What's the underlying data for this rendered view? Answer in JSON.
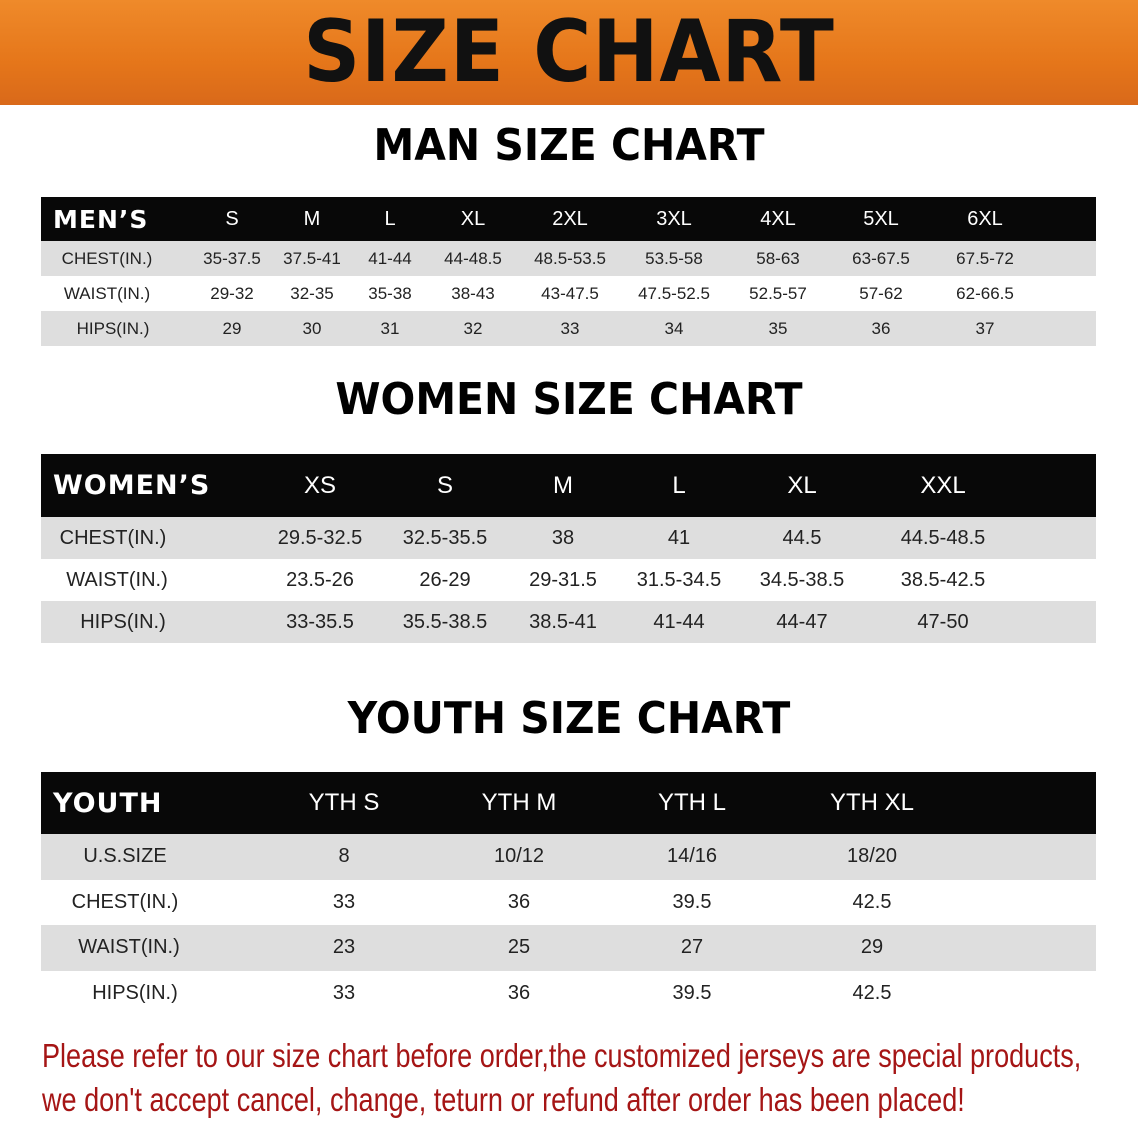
{
  "banner": {
    "title": "SIZE CHART",
    "color": "#e8781a"
  },
  "men": {
    "title": "MAN SIZE CHART",
    "header": [
      "MEN’S",
      "S",
      "M",
      "L",
      "XL",
      "2XL",
      "3XL",
      "4XL",
      "5XL",
      "6XL"
    ],
    "rows": [
      [
        "CHEST(IN.)",
        "35-37.5",
        "37.5-41",
        "41-44",
        "44-48.5",
        "48.5-53.5",
        "53.5-58",
        "58-63",
        "63-67.5",
        "67.5-72"
      ],
      [
        "WAIST(IN.)",
        "29-32",
        "32-35",
        "35-38",
        "38-43",
        "43-47.5",
        "47.5-52.5",
        "52.5-57",
        "57-62",
        "62-66.5"
      ],
      [
        "HIPS(IN.)",
        "29",
        "30",
        "31",
        "32",
        "33",
        "34",
        "35",
        "36",
        "37"
      ]
    ]
  },
  "women": {
    "title": "WOMEN SIZE CHART",
    "header": [
      "WOMEN’S",
      "XS",
      "S",
      "M",
      "L",
      "XL",
      "XXL"
    ],
    "rows": [
      [
        "CHEST(IN.)",
        "29.5-32.5",
        "32.5-35.5",
        "38",
        "41",
        "44.5",
        "44.5-48.5"
      ],
      [
        "WAIST(IN.)",
        "23.5-26",
        "26-29",
        "29-31.5",
        "31.5-34.5",
        "34.5-38.5",
        "38.5-42.5"
      ],
      [
        "HIPS(IN.)",
        "33-35.5",
        "35.5-38.5",
        "38.5-41",
        "41-44",
        "44-47",
        "47-50"
      ]
    ]
  },
  "youth": {
    "title": "YOUTH SIZE CHART",
    "header": [
      "YOUTH",
      "YTH S",
      "YTH M",
      "YTH L",
      "YTH XL"
    ],
    "rows": [
      [
        "U.S.SIZE",
        "8",
        "10/12",
        "14/16",
        "18/20"
      ],
      [
        "CHEST(IN.)",
        "33",
        "36",
        "39.5",
        "42.5"
      ],
      [
        "WAIST(IN.)",
        "23",
        "25",
        "27",
        "29"
      ],
      [
        "HIPS(IN.)",
        "33",
        "36",
        "39.5",
        "42.5"
      ]
    ]
  },
  "notice": {
    "line1": "Please refer to our size chart before order,the customized jerseys are special products,",
    "line2": "we don't accept cancel, change, teturn or refund after order has been placed!",
    "color": "#a51515"
  }
}
